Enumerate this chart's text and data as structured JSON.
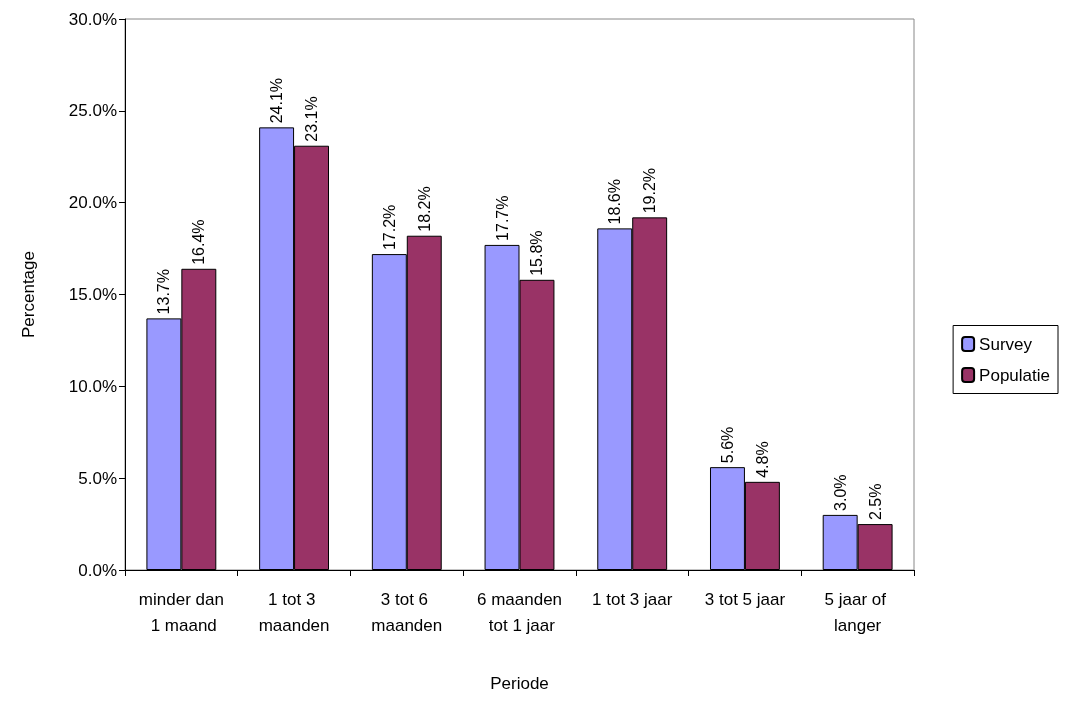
{
  "chart_data": {
    "type": "bar",
    "xlabel": "Periode",
    "ylabel": "Percentage",
    "categories": [
      "minder dan 1 maand",
      "1 tot 3 maanden",
      "3 tot 6 maanden",
      "6 maanden tot 1 jaar",
      "1 tot 3 jaar",
      "3 tot 5 jaar",
      "5 jaar of langer"
    ],
    "series": [
      {
        "name": "Survey",
        "color": "#9999ff",
        "values": [
          13.7,
          24.1,
          17.2,
          17.7,
          18.6,
          5.6,
          3.0
        ],
        "value_labels": [
          "13.7%",
          "24.1%",
          "17.2%",
          "17.7%",
          "18.6%",
          "5.6%",
          "3.0%"
        ]
      },
      {
        "name": "Populatie",
        "color": "#993366",
        "values": [
          16.4,
          23.1,
          18.2,
          15.8,
          19.2,
          4.8,
          2.5
        ],
        "value_labels": [
          "16.4%",
          "23.1%",
          "18.2%",
          "15.8%",
          "19.2%",
          "4.8%",
          "2.5%"
        ]
      }
    ],
    "ylim": [
      0,
      30
    ],
    "yticks": [
      {
        "value": 0,
        "label": "0.0%"
      },
      {
        "value": 5,
        "label": "5.0%"
      },
      {
        "value": 10,
        "label": "10.0%"
      },
      {
        "value": 15,
        "label": "15.0%"
      },
      {
        "value": 20,
        "label": "20.0%"
      },
      {
        "value": 25,
        "label": "25.0%"
      },
      {
        "value": 30,
        "label": "30.0%"
      }
    ],
    "grid": false,
    "legend": "right"
  }
}
